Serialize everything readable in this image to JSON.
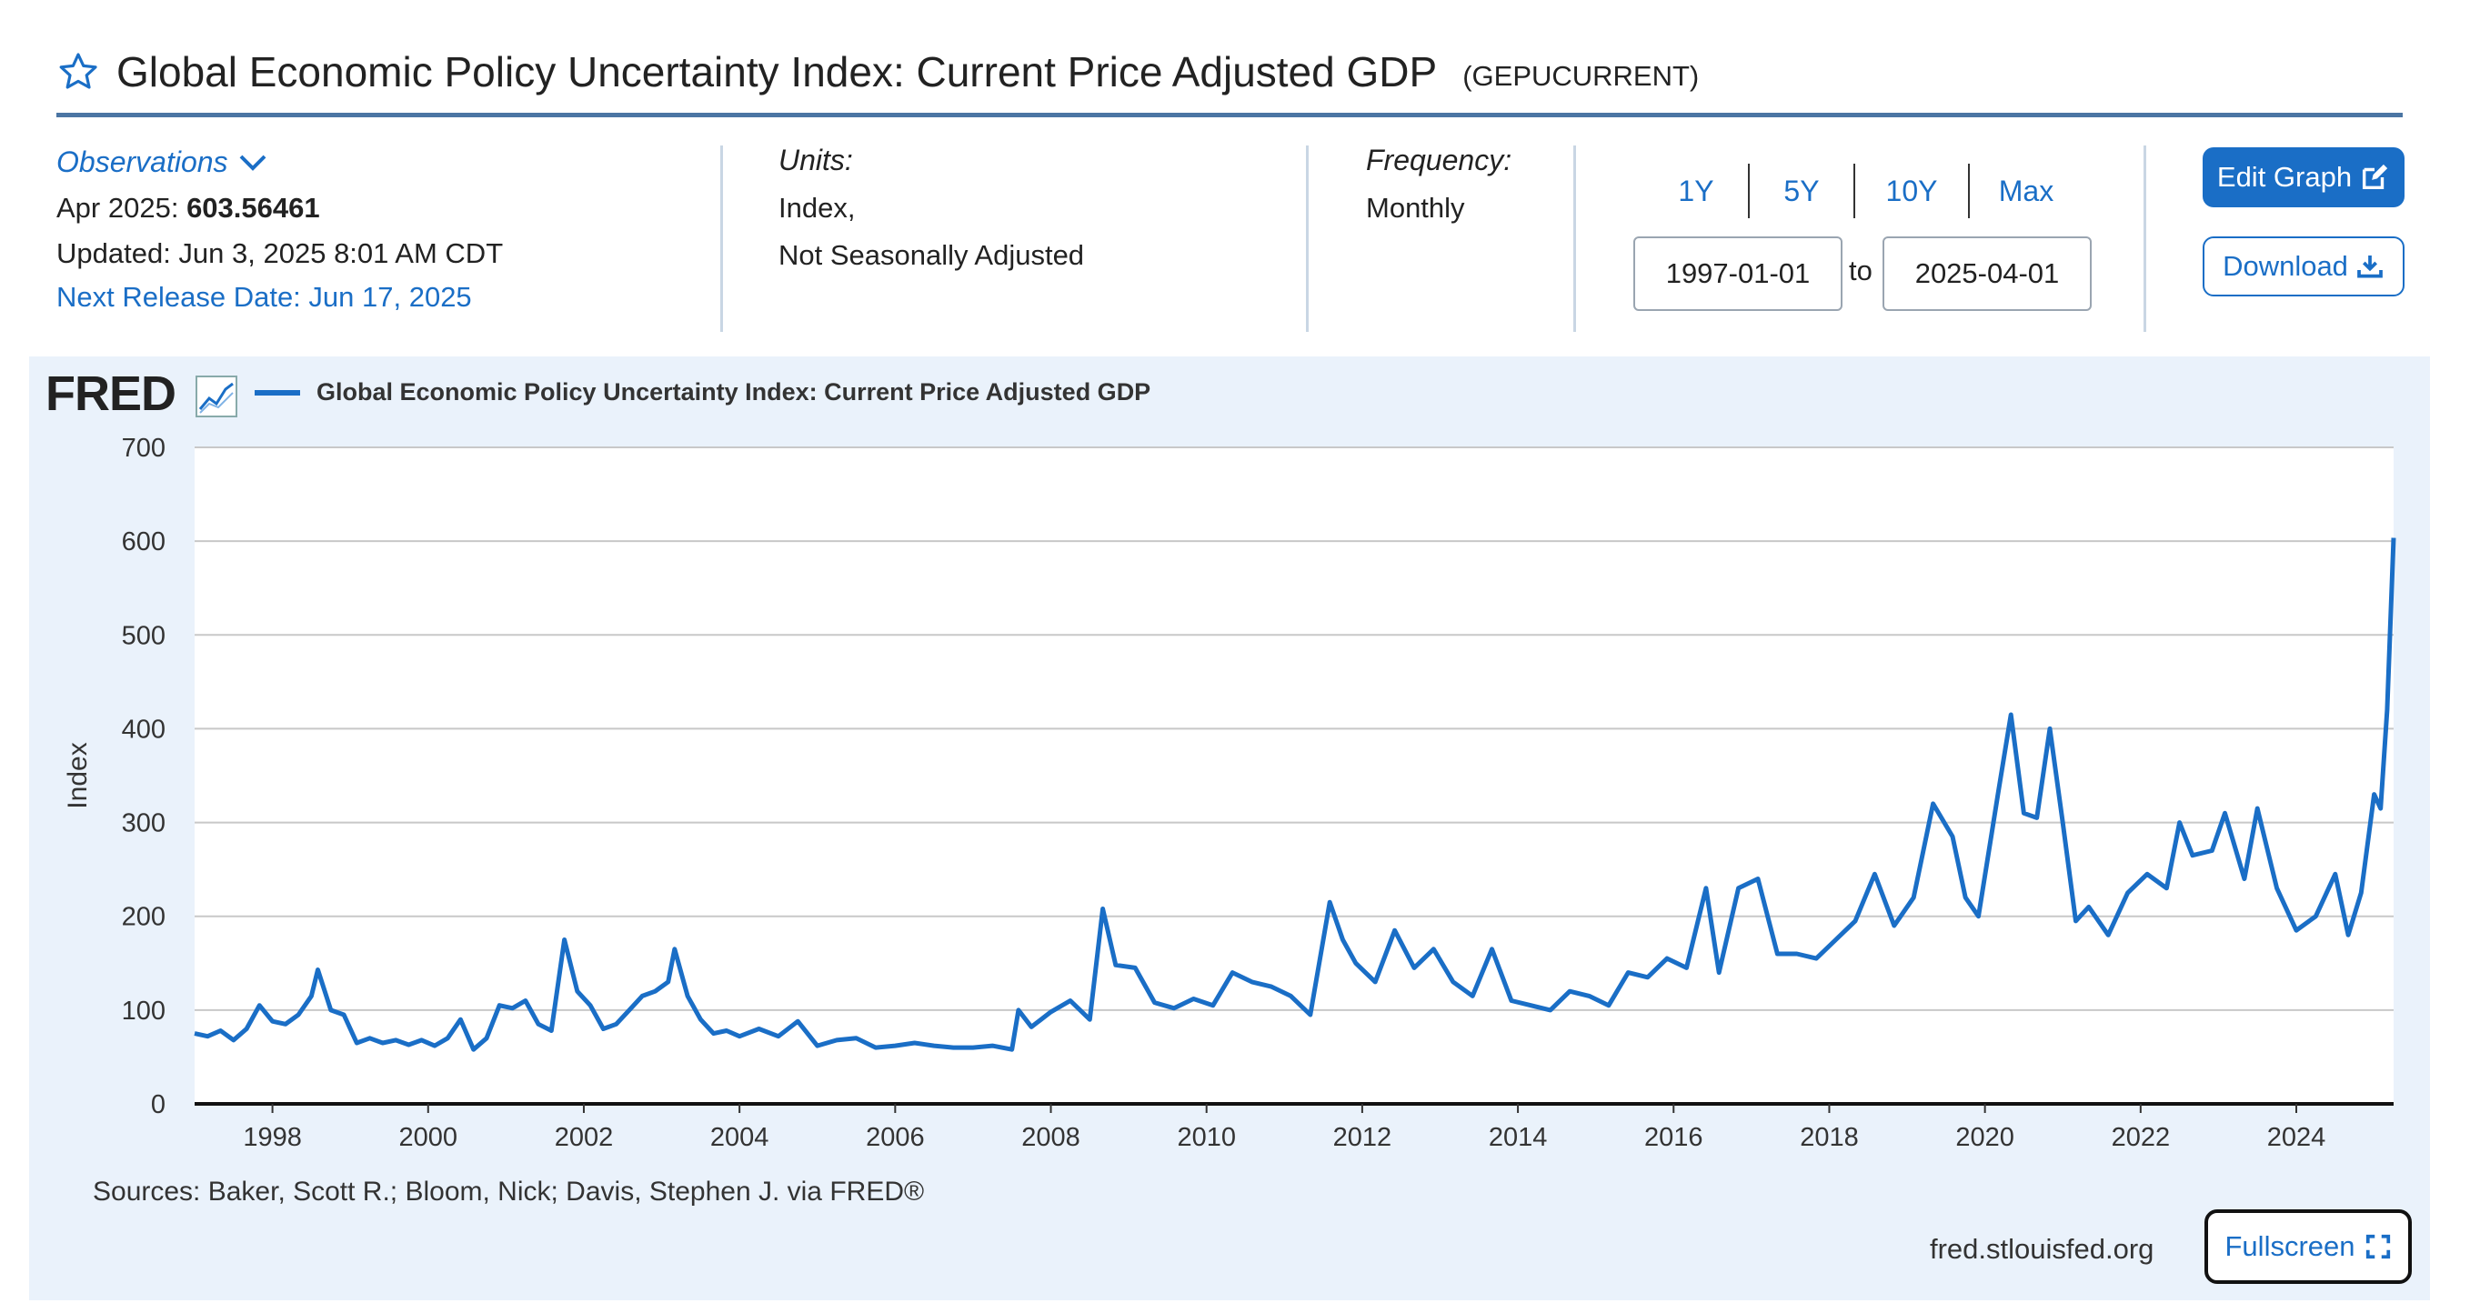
{
  "header": {
    "title": "Global Economic Policy Uncertainty Index: Current Price Adjusted GDP",
    "series_id": "(GEPUCURRENT)",
    "star_icon": "star-icon"
  },
  "observations": {
    "label": "Observations",
    "latest_date": "Apr 2025:",
    "latest_value": "603.56461",
    "updated": "Updated: Jun 3, 2025 8:01 AM CDT",
    "next_release": "Next Release Date: Jun 17, 2025"
  },
  "units": {
    "label": "Units:",
    "line1": "Index,",
    "line2": "Not Seasonally Adjusted"
  },
  "frequency": {
    "label": "Frequency:",
    "value": "Monthly"
  },
  "range_buttons": [
    "1Y",
    "5Y",
    "10Y",
    "Max"
  ],
  "date_range": {
    "start": "1997-01-01",
    "to": "to",
    "end": "2025-04-01"
  },
  "buttons": {
    "edit_graph": "Edit Graph",
    "download": "Download",
    "fullscreen": "Fullscreen"
  },
  "logo": {
    "text": "FRED"
  },
  "footer": {
    "sources": "Sources: Baker, Scott R.; Bloom, Nick; Davis, Stephen J. via FRED®",
    "url": "fred.stlouisfed.org"
  },
  "colors": {
    "accent": "#1a6ec6",
    "line": "#1a6ec6",
    "panel": "#eaf2fb"
  },
  "chart_data": {
    "type": "line",
    "title": "",
    "xlabel": "",
    "ylabel": "Index",
    "ylim": [
      0,
      700
    ],
    "yticks": [
      0,
      100,
      200,
      300,
      400,
      500,
      600,
      700
    ],
    "xlim": [
      "1997-01-01",
      "2025-04-01"
    ],
    "xticks": [
      "1998",
      "2000",
      "2002",
      "2004",
      "2006",
      "2008",
      "2010",
      "2012",
      "2014",
      "2016",
      "2018",
      "2020",
      "2022",
      "2024"
    ],
    "grid": "horizontal",
    "legend": "top-left",
    "series": [
      {
        "name": "Global Economic Policy Uncertainty Index: Current Price Adjusted GDP",
        "color": "#1a6ec6",
        "points": [
          [
            "1997-01",
            75
          ],
          [
            "1997-03",
            72
          ],
          [
            "1997-05",
            78
          ],
          [
            "1997-07",
            68
          ],
          [
            "1997-09",
            80
          ],
          [
            "1997-11",
            105
          ],
          [
            "1998-01",
            88
          ],
          [
            "1998-03",
            85
          ],
          [
            "1998-05",
            95
          ],
          [
            "1998-07",
            115
          ],
          [
            "1998-08",
            143
          ],
          [
            "1998-10",
            100
          ],
          [
            "1998-12",
            95
          ],
          [
            "1999-02",
            65
          ],
          [
            "1999-04",
            70
          ],
          [
            "1999-06",
            65
          ],
          [
            "1999-08",
            68
          ],
          [
            "1999-10",
            63
          ],
          [
            "1999-12",
            68
          ],
          [
            "2000-02",
            62
          ],
          [
            "2000-04",
            70
          ],
          [
            "2000-06",
            90
          ],
          [
            "2000-08",
            58
          ],
          [
            "2000-10",
            70
          ],
          [
            "2000-12",
            105
          ],
          [
            "2001-02",
            102
          ],
          [
            "2001-04",
            110
          ],
          [
            "2001-06",
            85
          ],
          [
            "2001-08",
            78
          ],
          [
            "2001-10",
            175
          ],
          [
            "2001-12",
            120
          ],
          [
            "2002-02",
            105
          ],
          [
            "2002-04",
            80
          ],
          [
            "2002-06",
            85
          ],
          [
            "2002-08",
            100
          ],
          [
            "2002-10",
            115
          ],
          [
            "2002-12",
            120
          ],
          [
            "2003-02",
            130
          ],
          [
            "2003-03",
            165
          ],
          [
            "2003-05",
            115
          ],
          [
            "2003-07",
            90
          ],
          [
            "2003-09",
            75
          ],
          [
            "2003-11",
            78
          ],
          [
            "2004-01",
            72
          ],
          [
            "2004-04",
            80
          ],
          [
            "2004-07",
            72
          ],
          [
            "2004-10",
            88
          ],
          [
            "2005-01",
            62
          ],
          [
            "2005-04",
            68
          ],
          [
            "2005-07",
            70
          ],
          [
            "2005-10",
            60
          ],
          [
            "2006-01",
            62
          ],
          [
            "2006-04",
            65
          ],
          [
            "2006-07",
            62
          ],
          [
            "2006-10",
            60
          ],
          [
            "2007-01",
            60
          ],
          [
            "2007-04",
            62
          ],
          [
            "2007-07",
            58
          ],
          [
            "2007-08",
            100
          ],
          [
            "2007-10",
            82
          ],
          [
            "2008-01",
            98
          ],
          [
            "2008-04",
            110
          ],
          [
            "2008-07",
            90
          ],
          [
            "2008-09",
            208
          ],
          [
            "2008-11",
            148
          ],
          [
            "2009-02",
            145
          ],
          [
            "2009-05",
            108
          ],
          [
            "2009-08",
            102
          ],
          [
            "2009-11",
            112
          ],
          [
            "2010-02",
            105
          ],
          [
            "2010-05",
            140
          ],
          [
            "2010-08",
            130
          ],
          [
            "2010-11",
            125
          ],
          [
            "2011-02",
            115
          ],
          [
            "2011-05",
            95
          ],
          [
            "2011-08",
            215
          ],
          [
            "2011-10",
            175
          ],
          [
            "2011-12",
            150
          ],
          [
            "2012-03",
            130
          ],
          [
            "2012-06",
            185
          ],
          [
            "2012-09",
            145
          ],
          [
            "2012-12",
            165
          ],
          [
            "2013-03",
            130
          ],
          [
            "2013-06",
            115
          ],
          [
            "2013-09",
            165
          ],
          [
            "2013-12",
            110
          ],
          [
            "2014-03",
            105
          ],
          [
            "2014-06",
            100
          ],
          [
            "2014-09",
            120
          ],
          [
            "2014-12",
            115
          ],
          [
            "2015-03",
            105
          ],
          [
            "2015-06",
            140
          ],
          [
            "2015-09",
            135
          ],
          [
            "2015-12",
            155
          ],
          [
            "2016-03",
            145
          ],
          [
            "2016-06",
            230
          ],
          [
            "2016-08",
            140
          ],
          [
            "2016-11",
            230
          ],
          [
            "2017-02",
            240
          ],
          [
            "2017-05",
            160
          ],
          [
            "2017-08",
            160
          ],
          [
            "2017-11",
            155
          ],
          [
            "2018-02",
            175
          ],
          [
            "2018-05",
            195
          ],
          [
            "2018-08",
            245
          ],
          [
            "2018-11",
            190
          ],
          [
            "2019-02",
            220
          ],
          [
            "2019-05",
            320
          ],
          [
            "2019-08",
            285
          ],
          [
            "2019-10",
            220
          ],
          [
            "2019-12",
            200
          ],
          [
            "2020-03",
            330
          ],
          [
            "2020-05",
            415
          ],
          [
            "2020-07",
            310
          ],
          [
            "2020-09",
            305
          ],
          [
            "2020-11",
            400
          ],
          [
            "2021-01",
            300
          ],
          [
            "2021-03",
            195
          ],
          [
            "2021-05",
            210
          ],
          [
            "2021-08",
            180
          ],
          [
            "2021-11",
            225
          ],
          [
            "2022-02",
            245
          ],
          [
            "2022-05",
            230
          ],
          [
            "2022-07",
            300
          ],
          [
            "2022-09",
            265
          ],
          [
            "2022-12",
            270
          ],
          [
            "2023-02",
            310
          ],
          [
            "2023-05",
            240
          ],
          [
            "2023-07",
            315
          ],
          [
            "2023-10",
            230
          ],
          [
            "2024-01",
            185
          ],
          [
            "2024-04",
            200
          ],
          [
            "2024-07",
            245
          ],
          [
            "2024-09",
            180
          ],
          [
            "2024-11",
            225
          ],
          [
            "2025-01",
            330
          ],
          [
            "2025-02",
            315
          ],
          [
            "2025-03",
            420
          ],
          [
            "2025-04",
            603.56
          ]
        ]
      }
    ]
  }
}
